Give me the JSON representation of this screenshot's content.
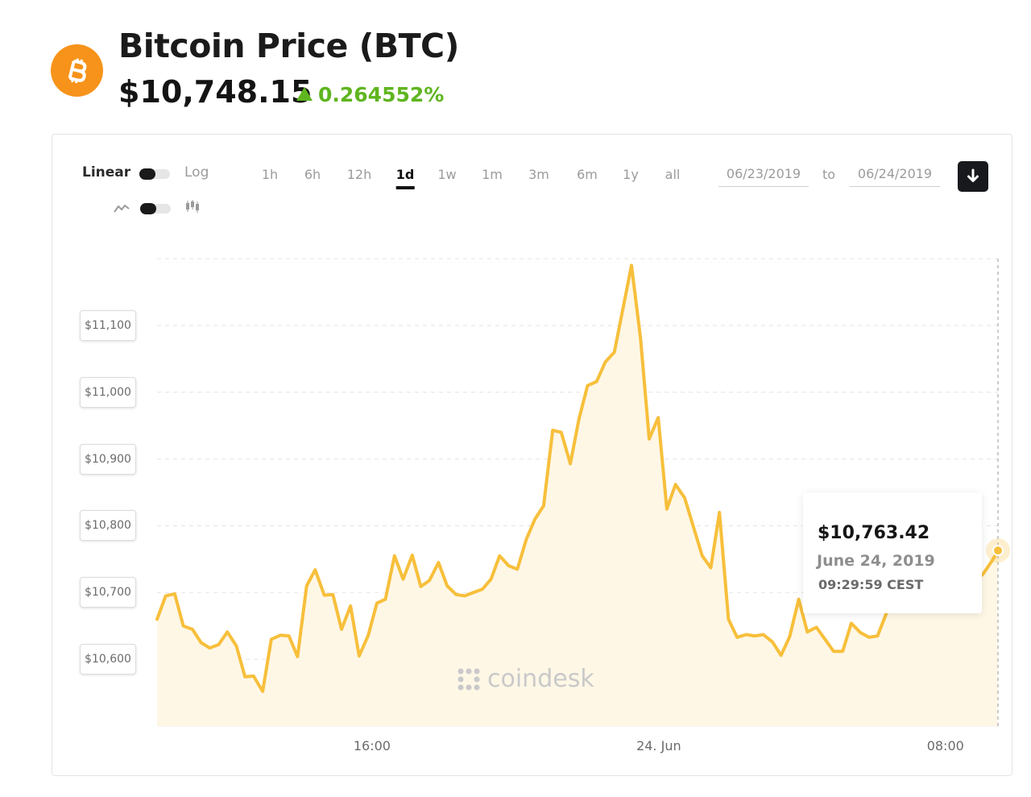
{
  "header": {
    "title": "Bitcoin Price (BTC)",
    "price": "$10,748.15",
    "change": "0.264552%",
    "logo_icon": "bitcoin-icon"
  },
  "controls": {
    "scale_linear": "Linear",
    "scale_log": "Log",
    "line_icon": "line-chart-icon",
    "candle_icon": "candlestick-icon",
    "timeframes": [
      "1h",
      "6h",
      "12h",
      "1d",
      "1w",
      "1m",
      "3m",
      "6m",
      "1y",
      "all"
    ],
    "active_timeframe": "1d",
    "date_from": "06/23/2019",
    "date_to_label": "to",
    "date_to": "06/24/2019",
    "download_icon": "download-icon"
  },
  "watermark": "coindesk",
  "tooltip": {
    "price": "$10,763.42",
    "date": "June 24, 2019",
    "time": "09:29:59 CEST"
  },
  "colors": {
    "bitcoin": "#f7931a",
    "line": "#f7bf3b",
    "fill": "#fef7e6",
    "positive": "#5fb51f"
  },
  "chart_data": {
    "type": "area",
    "y_tick_labels": [
      "$11,100",
      "$11,000",
      "$10,900",
      "$10,800",
      "$10,700",
      "$10,600"
    ],
    "y_ticks": [
      11100,
      11000,
      10900,
      10800,
      10700,
      10600
    ],
    "x_tick_labels": [
      "16:00",
      "24. Jun",
      "08:00"
    ],
    "x_ticks": [
      4.5,
      10.5,
      16.5
    ],
    "ylim": [
      10500,
      11200
    ],
    "xlim": [
      0,
      17.6
    ],
    "grid": true,
    "x_hours": [
      0,
      0.18,
      0.37,
      0.55,
      0.74,
      0.92,
      1.1,
      1.29,
      1.47,
      1.66,
      1.84,
      2.02,
      2.21,
      2.39,
      2.58,
      2.76,
      2.94,
      3.13,
      3.31,
      3.5,
      3.68,
      3.86,
      4.05,
      4.23,
      4.42,
      4.6,
      4.78,
      4.97,
      5.15,
      5.34,
      5.52,
      5.7,
      5.89,
      6.07,
      6.26,
      6.44,
      6.62,
      6.81,
      6.99,
      7.17,
      7.36,
      7.54,
      7.73,
      7.91,
      8.09,
      8.28,
      8.46,
      8.65,
      8.83,
      9.01,
      9.2,
      9.38,
      9.57,
      9.75,
      9.93,
      10.12,
      10.3,
      10.49,
      10.67,
      10.85,
      11.04,
      11.22,
      11.41,
      11.59,
      11.77,
      11.96,
      12.14,
      12.33,
      12.51,
      12.69,
      12.88,
      13.06,
      13.24,
      13.43,
      13.61,
      13.8,
      13.98,
      14.16,
      14.35,
      14.53,
      14.72,
      14.9,
      15.08,
      15.27,
      15.45,
      15.64,
      15.82,
      16,
      16.19,
      16.37,
      16.56,
      16.74,
      16.92,
      17.11,
      17.29,
      17.48,
      17.6
    ],
    "values": [
      10660,
      10695,
      10698,
      10650,
      10645,
      10625,
      10617,
      10622,
      10641,
      10620,
      10574,
      10575,
      10552,
      10630,
      10636,
      10635,
      10604,
      10710,
      10734,
      10696,
      10697,
      10645,
      10680,
      10605,
      10636,
      10684,
      10690,
      10755,
      10720,
      10756,
      10709,
      10718,
      10745,
      10710,
      10697,
      10695,
      10700,
      10705,
      10720,
      10755,
      10740,
      10735,
      10780,
      10810,
      10830,
      10943,
      10940,
      10893,
      10960,
      11010,
      11016,
      11045,
      11060,
      11125,
      11190,
      11080,
      10930,
      10962,
      10825,
      10862,
      10842,
      10800,
      10755,
      10737,
      10820,
      10660,
      10633,
      10637,
      10635,
      10637,
      10626,
      10606,
      10634,
      10690,
      10641,
      10648,
      10630,
      10612,
      10612,
      10654,
      10640,
      10633,
      10635,
      10670,
      10696,
      10708,
      10720,
      10742,
      10725,
      10683,
      10690,
      10702,
      10708,
      10716,
      10728,
      10748,
      10763
    ]
  }
}
